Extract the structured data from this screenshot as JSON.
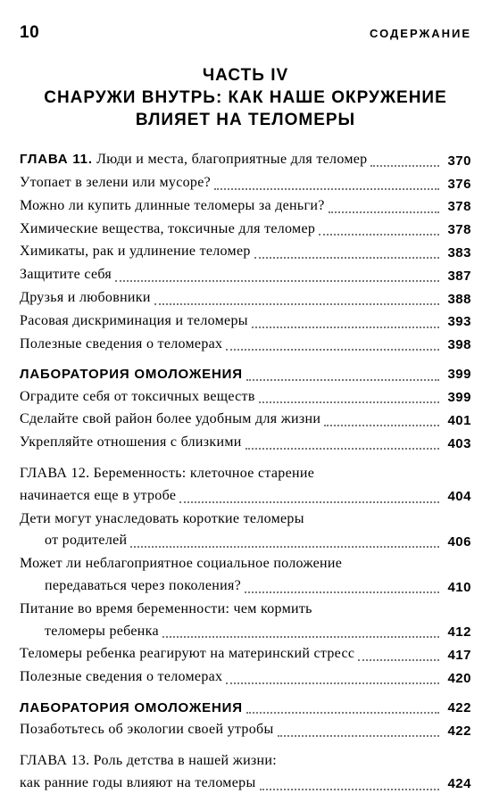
{
  "header": {
    "page_number": "10",
    "label": "СОДЕРЖАНИЕ"
  },
  "part": {
    "line1": "ЧАСТЬ IV",
    "line2": "СНАРУЖИ ВНУТРЬ: КАК НАШЕ ОКРУЖЕНИЕ",
    "line3": "ВЛИЯЕТ НА ТЕЛОМЕРЫ"
  },
  "entries": [
    {
      "type": "chapter",
      "label": "ГЛАВА 11.",
      "text": " Люди и места, благоприятные для теломер",
      "page": "370",
      "top_gap": false
    },
    {
      "type": "plain",
      "text": "Утопает в зелени или мусоре?",
      "page": "376"
    },
    {
      "type": "plain",
      "text": "Можно ли купить длинные теломеры за деньги?",
      "page": "378"
    },
    {
      "type": "plain",
      "text": "Химические вещества, токсичные для теломер",
      "page": "378"
    },
    {
      "type": "plain",
      "text": "Химикаты, рак и удлинение теломер",
      "page": "383"
    },
    {
      "type": "plain",
      "text": "Защитите себя",
      "page": "387"
    },
    {
      "type": "plain",
      "text": "Друзья и любовники",
      "page": "388"
    },
    {
      "type": "plain",
      "text": "Расовая дискриминация и теломеры",
      "page": "393"
    },
    {
      "type": "plain",
      "text": "Полезные сведения о теломерах",
      "page": "398"
    },
    {
      "type": "section",
      "text": "ЛАБОРАТОРИЯ ОМОЛОЖЕНИЯ",
      "page": "399",
      "top_gap": true
    },
    {
      "type": "plain",
      "text": "Оградите себя от токсичных веществ",
      "page": "399"
    },
    {
      "type": "plain",
      "text": "Сделайте свой район более удобным для жизни",
      "page": "401"
    },
    {
      "type": "plain",
      "text": "Укрепляйте отношения с близкими",
      "page": "403"
    },
    {
      "type": "chapter-wrap",
      "label": "ГЛАВА 12.",
      "line1": " Беременность: клеточное старение",
      "line2": "начинается еще в утробе",
      "page": "404",
      "top_gap": true
    },
    {
      "type": "wrap",
      "line1": "Дети могут унаследовать короткие теломеры",
      "line2": "от родителей",
      "page": "406",
      "indent2": true
    },
    {
      "type": "wrap",
      "line1": "Может ли неблагоприятное социальное положение",
      "line2": "передаваться через поколения?",
      "page": "410",
      "indent2": true
    },
    {
      "type": "wrap",
      "line1": "Питание во время беременности: чем кормить",
      "line2": "теломеры ребенка",
      "page": "412",
      "indent2": true
    },
    {
      "type": "plain",
      "text": "Теломеры ребенка реагируют на материнский стресс",
      "page": "417"
    },
    {
      "type": "plain",
      "text": "Полезные сведения о теломерах",
      "page": "420"
    },
    {
      "type": "section",
      "text": "ЛАБОРАТОРИЯ ОМОЛОЖЕНИЯ",
      "page": "422",
      "top_gap": true
    },
    {
      "type": "plain",
      "text": "Позаботьтесь об экологии своей утробы",
      "page": "422"
    },
    {
      "type": "chapter-wrap",
      "label": "ГЛАВА 13.",
      "line1": " Роль детства в нашей жизни:",
      "line2": "как ранние годы влияют на теломеры",
      "page": "424",
      "top_gap": true
    }
  ]
}
